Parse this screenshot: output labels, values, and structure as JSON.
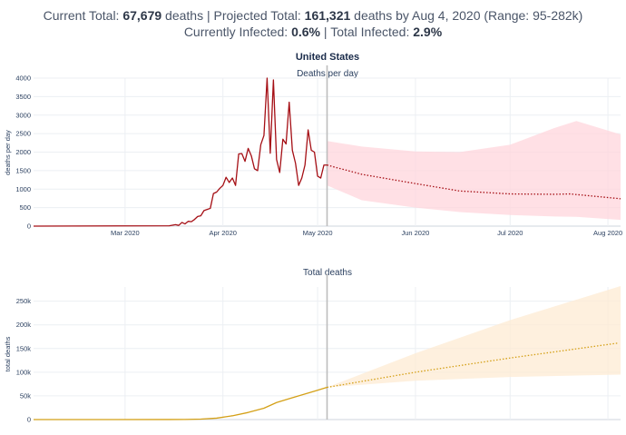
{
  "summary": {
    "current_total_label": "Current Total:",
    "current_total_value": "67,679",
    "current_total_unit": "deaths",
    "sep1": "|",
    "projected_label": "Projected Total:",
    "projected_value": "161,321",
    "projected_suffix": "deaths by Aug 4, 2020 (Range: 95-282k)",
    "infected_label": "Currently Infected:",
    "infected_value": "0.6%",
    "sep2": "|",
    "total_infected_label": "Total Infected:",
    "total_infected_value": "2.9%"
  },
  "chart_data": [
    {
      "type": "line",
      "title": "United States",
      "subtitle": "Deaths per day",
      "ylabel": "deaths per day",
      "ylim": [
        0,
        4000
      ],
      "yticks": [
        "0",
        "500",
        "1000",
        "1500",
        "2000",
        "2500",
        "3000",
        "3500",
        "4000"
      ],
      "xlim": [
        "2020-02-01",
        "2020-08-05"
      ],
      "xticks": [
        {
          "date": "2020-03-01",
          "label": "Mar 2020"
        },
        {
          "date": "2020-04-01",
          "label": "Apr 2020"
        },
        {
          "date": "2020-05-01",
          "label": "May 2020"
        },
        {
          "date": "2020-06-01",
          "label": "Jun 2020"
        },
        {
          "date": "2020-07-01",
          "label": "Jul 2020"
        },
        {
          "date": "2020-08-01",
          "label": "Aug 2020"
        }
      ],
      "divider_date": "2020-05-04",
      "series": [
        {
          "style": "solid",
          "color": "#a50f15",
          "x": [
            "2020-02-01",
            "2020-03-15",
            "2020-03-17",
            "2020-03-18",
            "2020-03-19",
            "2020-03-20",
            "2020-03-21",
            "2020-03-22",
            "2020-03-23",
            "2020-03-24",
            "2020-03-25",
            "2020-03-26",
            "2020-03-27",
            "2020-03-28",
            "2020-03-29",
            "2020-03-30",
            "2020-03-31",
            "2020-04-01",
            "2020-04-02",
            "2020-04-03",
            "2020-04-04",
            "2020-04-05",
            "2020-04-06",
            "2020-04-07",
            "2020-04-08",
            "2020-04-09",
            "2020-04-10",
            "2020-04-11",
            "2020-04-12",
            "2020-04-13",
            "2020-04-14",
            "2020-04-15",
            "2020-04-16",
            "2020-04-17",
            "2020-04-18",
            "2020-04-19",
            "2020-04-20",
            "2020-04-21",
            "2020-04-22",
            "2020-04-23",
            "2020-04-24",
            "2020-04-25",
            "2020-04-26",
            "2020-04-27",
            "2020-04-28",
            "2020-04-29",
            "2020-04-30",
            "2020-05-01",
            "2020-05-02",
            "2020-05-03",
            "2020-05-04"
          ],
          "values": [
            0,
            10,
            40,
            20,
            100,
            60,
            130,
            120,
            180,
            260,
            280,
            420,
            450,
            480,
            880,
            920,
            1020,
            1100,
            1320,
            1180,
            1300,
            1100,
            1950,
            1960,
            1750,
            2100,
            1900,
            1550,
            1500,
            2200,
            2450,
            4000,
            1970,
            3950,
            1800,
            1450,
            2350,
            2220,
            3350,
            2050,
            1700,
            1100,
            1300,
            1650,
            2600,
            2050,
            2000,
            1350,
            1300,
            1650,
            1650
          ]
        },
        {
          "style": "dotted",
          "color": "#a50f15",
          "x": [
            "2020-05-04",
            "2020-05-15",
            "2020-06-01",
            "2020-06-15",
            "2020-07-01",
            "2020-07-15",
            "2020-07-20",
            "2020-08-05"
          ],
          "values": [
            1650,
            1400,
            1150,
            950,
            870,
            860,
            870,
            740
          ]
        }
      ],
      "band": {
        "color": "#ffd6dc",
        "x": [
          "2020-05-04",
          "2020-05-15",
          "2020-06-01",
          "2020-06-15",
          "2020-07-01",
          "2020-07-15",
          "2020-07-22",
          "2020-08-05"
        ],
        "upper": [
          2300,
          2150,
          2020,
          2000,
          2200,
          2650,
          2840,
          2480
        ],
        "lower": [
          1100,
          700,
          500,
          380,
          300,
          260,
          250,
          170
        ]
      }
    },
    {
      "type": "line",
      "subtitle": "Total deaths",
      "ylabel": "total deaths",
      "ylim": [
        0,
        280000
      ],
      "yticks": [
        "0",
        "50k",
        "100k",
        "150k",
        "200k",
        "250k"
      ],
      "xlim": [
        "2020-02-01",
        "2020-08-05"
      ],
      "xticks": [
        {
          "date": "2020-03-01",
          "label": ""
        },
        {
          "date": "2020-04-01",
          "label": ""
        },
        {
          "date": "2020-05-01",
          "label": ""
        },
        {
          "date": "2020-06-01",
          "label": ""
        },
        {
          "date": "2020-07-01",
          "label": ""
        },
        {
          "date": "2020-08-01",
          "label": ""
        }
      ],
      "divider_date": "2020-05-04",
      "series": [
        {
          "style": "solid",
          "color": "#d4a017",
          "x": [
            "2020-02-01",
            "2020-03-15",
            "2020-03-20",
            "2020-03-25",
            "2020-03-30",
            "2020-04-04",
            "2020-04-09",
            "2020-04-14",
            "2020-04-18",
            "2020-04-22",
            "2020-04-26",
            "2020-04-30",
            "2020-05-04"
          ],
          "values": [
            0,
            70,
            250,
            1000,
            3000,
            8000,
            15000,
            24000,
            36000,
            44000,
            52000,
            60000,
            68000
          ]
        },
        {
          "style": "dotted",
          "color": "#d4a017",
          "x": [
            "2020-05-04",
            "2020-06-01",
            "2020-07-01",
            "2020-08-04"
          ],
          "values": [
            68000,
            100000,
            130000,
            161321
          ]
        }
      ],
      "band": {
        "color": "#fdebd3",
        "x": [
          "2020-05-04",
          "2020-06-01",
          "2020-07-01",
          "2020-08-05"
        ],
        "upper": [
          68000,
          140000,
          210000,
          282000
        ],
        "lower": [
          68000,
          82000,
          90000,
          95000
        ]
      }
    }
  ]
}
